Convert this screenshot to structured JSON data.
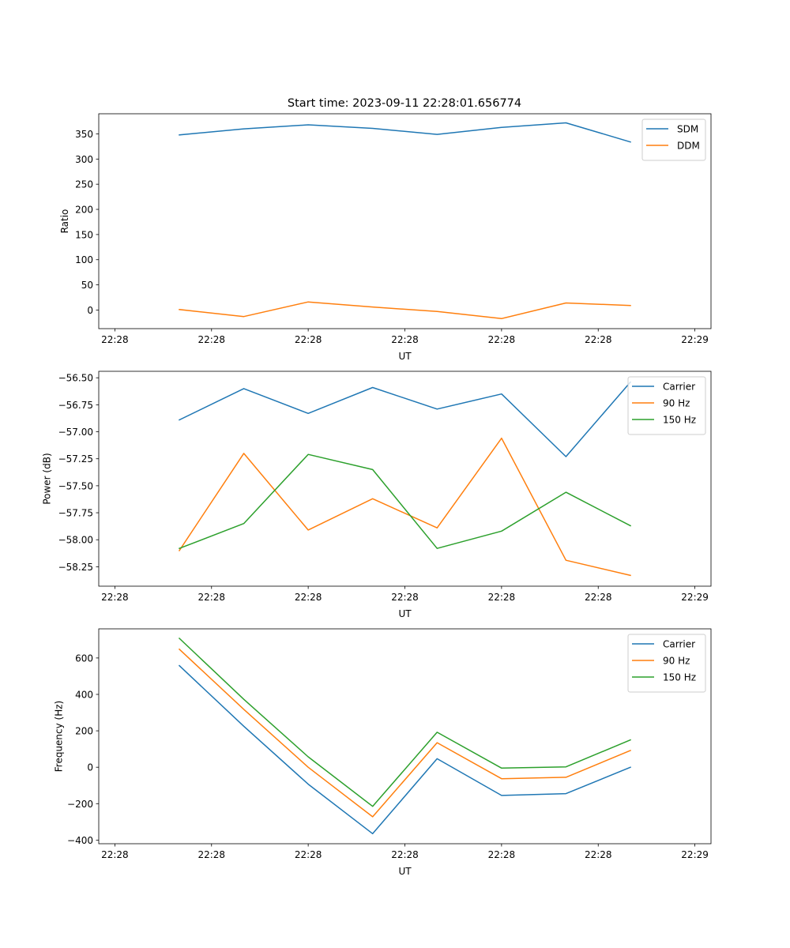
{
  "figure_title": "Start time: 2023-09-11 22:28:01.656774",
  "colors": {
    "c0": "#1f77b4",
    "c1": "#ff7f0e",
    "c2": "#2ca02c"
  },
  "chart_data": [
    {
      "type": "line",
      "xlabel": "UT",
      "ylabel": "Ratio",
      "xticklabels": [
        "22:28",
        "22:28",
        "22:28",
        "22:28",
        "22:28",
        "22:28",
        "22:29"
      ],
      "xlim": [
        -0.25,
        9.25
      ],
      "x": [
        1,
        2,
        3,
        4,
        5,
        6,
        7,
        8
      ],
      "ylim": [
        -37,
        390
      ],
      "yticks": [
        0,
        50,
        100,
        150,
        200,
        250,
        300,
        350
      ],
      "series": [
        {
          "name": "SDM",
          "color": "#1f77b4",
          "values": [
            348,
            360,
            368,
            361,
            349,
            363,
            372,
            334
          ]
        },
        {
          "name": "DDM",
          "color": "#ff7f0e",
          "values": [
            1,
            -13,
            16,
            6,
            -3,
            -17,
            14,
            9
          ]
        }
      ]
    },
    {
      "type": "line",
      "xlabel": "UT",
      "ylabel": "Power (dB)",
      "xticklabels": [
        "22:28",
        "22:28",
        "22:28",
        "22:28",
        "22:28",
        "22:28",
        "22:29"
      ],
      "xlim": [
        -0.25,
        9.25
      ],
      "x": [
        1,
        2,
        3,
        4,
        5,
        6,
        7,
        8
      ],
      "ylim": [
        -58.43,
        -56.44
      ],
      "yticks": [
        -58.25,
        -58.0,
        -57.75,
        -57.5,
        -57.25,
        -57.0,
        -56.75,
        -56.5
      ],
      "yticklabels": [
        "−58.25",
        "−58.00",
        "−57.75",
        "−57.50",
        "−57.25",
        "−57.00",
        "−56.75",
        "−56.50"
      ],
      "series": [
        {
          "name": "Carrier",
          "color": "#1f77b4",
          "values": [
            -56.89,
            -56.6,
            -56.83,
            -56.59,
            -56.79,
            -56.65,
            -57.23,
            -56.54
          ]
        },
        {
          "name": "90 Hz",
          "color": "#ff7f0e",
          "values": [
            -58.1,
            -57.2,
            -57.91,
            -57.62,
            -57.89,
            -57.06,
            -58.19,
            -58.33
          ]
        },
        {
          "name": "150 Hz",
          "color": "#2ca02c",
          "values": [
            -58.08,
            -57.85,
            -57.21,
            -57.35,
            -58.08,
            -57.92,
            -57.56,
            -57.87
          ]
        }
      ]
    },
    {
      "type": "line",
      "xlabel": "UT",
      "ylabel": "Frequency (Hz)",
      "xticklabels": [
        "22:28",
        "22:28",
        "22:28",
        "22:28",
        "22:28",
        "22:28",
        "22:29"
      ],
      "xlim": [
        -0.25,
        9.25
      ],
      "x": [
        1,
        2,
        3,
        4,
        5,
        6,
        7,
        8
      ],
      "ylim": [
        -420,
        760
      ],
      "yticks": [
        -400,
        -200,
        0,
        200,
        400,
        600
      ],
      "yticklabels": [
        "−400",
        "−200",
        "0",
        "200",
        "400",
        "600"
      ],
      "series": [
        {
          "name": "Carrier",
          "color": "#1f77b4",
          "values": [
            558,
            225,
            -93,
            -365,
            47,
            -155,
            -145,
            0
          ]
        },
        {
          "name": "90 Hz",
          "color": "#ff7f0e",
          "values": [
            648,
            318,
            0,
            -272,
            135,
            -63,
            -55,
            92
          ]
        },
        {
          "name": "150 Hz",
          "color": "#2ca02c",
          "values": [
            708,
            373,
            57,
            -215,
            192,
            -5,
            2,
            150
          ]
        }
      ]
    }
  ]
}
